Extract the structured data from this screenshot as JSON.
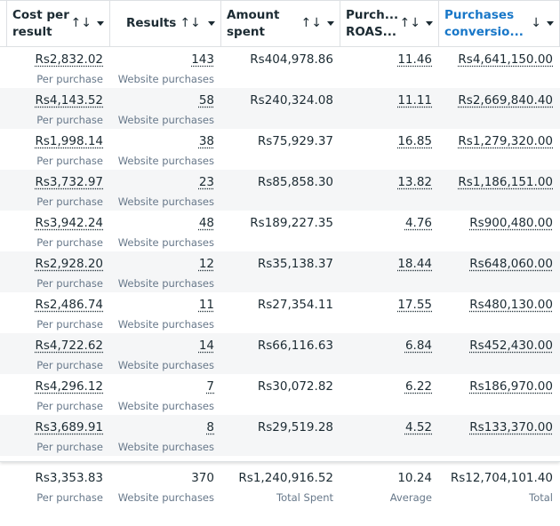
{
  "columns": [
    {
      "label": "Cost per result",
      "sort_icon": "sort-both-icon"
    },
    {
      "label": "Results",
      "sort_icon": "sort-both-icon"
    },
    {
      "label": "Amount spent",
      "sort_icon": "sort-both-icon"
    },
    {
      "label": "Purch... ROAS...",
      "sort_icon": "sort-both-icon"
    },
    {
      "label": "Purchases conversio...",
      "sort_icon": "sort-down-icon",
      "active": true
    }
  ],
  "sort_both": "↑↓",
  "sort_down": "↓",
  "accent": "#1877c8",
  "rows": [
    {
      "cost": "Rs2,832.02",
      "cost_sub": "Per purchase",
      "results": "143",
      "results_sub": "Website purchases",
      "spent": "Rs404,978.86",
      "roas": "11.46",
      "conv": "Rs4,641,150.00"
    },
    {
      "cost": "Rs4,143.52",
      "cost_sub": "Per purchase",
      "results": "58",
      "results_sub": "Website purchases",
      "spent": "Rs240,324.08",
      "roas": "11.11",
      "conv": "Rs2,669,840.40"
    },
    {
      "cost": "Rs1,998.14",
      "cost_sub": "Per purchase",
      "results": "38",
      "results_sub": "Website purchases",
      "spent": "Rs75,929.37",
      "roas": "16.85",
      "conv": "Rs1,279,320.00"
    },
    {
      "cost": "Rs3,732.97",
      "cost_sub": "Per purchase",
      "results": "23",
      "results_sub": "Website purchases",
      "spent": "Rs85,858.30",
      "roas": "13.82",
      "conv": "Rs1,186,151.00"
    },
    {
      "cost": "Rs3,942.24",
      "cost_sub": "Per purchase",
      "results": "48",
      "results_sub": "Website purchases",
      "spent": "Rs189,227.35",
      "roas": "4.76",
      "conv": "Rs900,480.00"
    },
    {
      "cost": "Rs2,928.20",
      "cost_sub": "Per purchase",
      "results": "12",
      "results_sub": "Website purchases",
      "spent": "Rs35,138.37",
      "roas": "18.44",
      "conv": "Rs648,060.00"
    },
    {
      "cost": "Rs2,486.74",
      "cost_sub": "Per purchase",
      "results": "11",
      "results_sub": "Website purchases",
      "spent": "Rs27,354.11",
      "roas": "17.55",
      "conv": "Rs480,130.00"
    },
    {
      "cost": "Rs4,722.62",
      "cost_sub": "Per purchase",
      "results": "14",
      "results_sub": "Website purchases",
      "spent": "Rs66,116.63",
      "roas": "6.84",
      "conv": "Rs452,430.00"
    },
    {
      "cost": "Rs4,296.12",
      "cost_sub": "Per purchase",
      "results": "7",
      "results_sub": "Website purchases",
      "spent": "Rs30,072.82",
      "roas": "6.22",
      "conv": "Rs186,970.00"
    },
    {
      "cost": "Rs3,689.91",
      "cost_sub": "Per purchase",
      "results": "8",
      "results_sub": "Website purchases",
      "spent": "Rs29,519.28",
      "roas": "4.52",
      "conv": "Rs133,370.00"
    }
  ],
  "footer": {
    "cost": "Rs3,353.83",
    "cost_sub": "Per purchase",
    "results": "370",
    "results_sub": "Website purchases",
    "spent": "Rs1,240,916.52",
    "spent_sub": "Total Spent",
    "roas": "10.24",
    "roas_sub": "Average",
    "conv": "Rs12,704,101.40",
    "conv_sub": "Total"
  }
}
